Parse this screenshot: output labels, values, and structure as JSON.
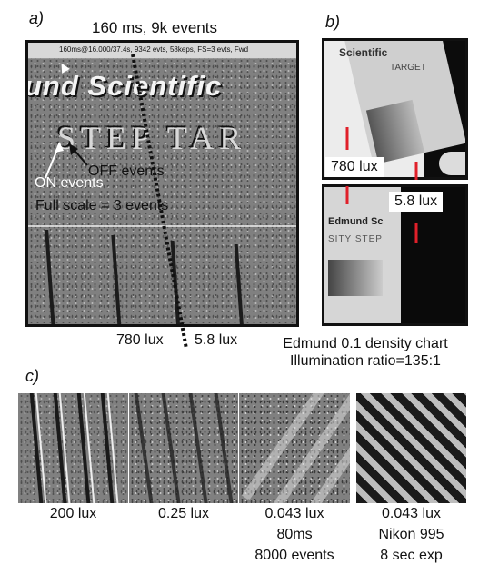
{
  "panel_a": {
    "letter": "a)",
    "header": "160 ms, 9k events",
    "status_bar": "160ms@16.000/37.4s, 9342 evts, 58keps, FS=3 evts, Fwd",
    "scene_text_1": "und Scientific",
    "scene_text_2": "STEP TAR",
    "on_label": "ON events",
    "off_label": "OFF events",
    "full_scale": "Full scale = 3 events",
    "lux_left": "780 lux",
    "lux_right": "5.8 lux"
  },
  "panel_b": {
    "letter": "b)",
    "top_scene_text_1": "Scientific",
    "top_scene_text_2": "TARGET",
    "lux_high": "780 lux",
    "lux_low": "5.8 lux",
    "bottom_scene_text_1": "Edmund Sc",
    "bottom_scene_text_2": "SITY STEP",
    "caption_1": "Edmund 0.1 density chart",
    "caption_2": "Illumination ratio=135:1"
  },
  "panel_c": {
    "letter": "c)",
    "captions": [
      {
        "line1": "200 lux"
      },
      {
        "line1": "0.25 lux"
      },
      {
        "line1": "0.043 lux",
        "line2": "80ms",
        "line3": "8000 events"
      },
      {
        "line1": "0.043 lux",
        "line2": "Nikon 995",
        "line3": "8 sec exp"
      }
    ]
  },
  "colors": {
    "frame": "#111111",
    "event_gray": "#808080",
    "marker_red": "#e0202a"
  }
}
